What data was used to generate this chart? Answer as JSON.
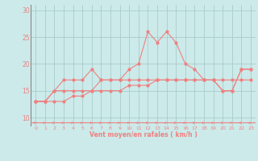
{
  "xlabel": "Vent moyen/en rafales ( km/h )",
  "background_color": "#cceaea",
  "grid_color": "#aacccc",
  "line_color": "#f08080",
  "axis_color": "#888888",
  "x_values": [
    0,
    1,
    2,
    3,
    4,
    5,
    6,
    7,
    8,
    9,
    10,
    11,
    12,
    13,
    14,
    15,
    16,
    17,
    18,
    19,
    20,
    21,
    22,
    23
  ],
  "line1_y": [
    13,
    13,
    15,
    17,
    17,
    17,
    19,
    17,
    17,
    17,
    19,
    20,
    26,
    24,
    26,
    24,
    20,
    19,
    17,
    17,
    15,
    15,
    19,
    19
  ],
  "line2_y": [
    13,
    13,
    15,
    15,
    15,
    15,
    15,
    17,
    17,
    17,
    17,
    17,
    17,
    17,
    17,
    17,
    17,
    17,
    17,
    17,
    15,
    15,
    19,
    19
  ],
  "line3_y": [
    13,
    13,
    13,
    13,
    14,
    14,
    15,
    15,
    15,
    15,
    16,
    16,
    16,
    17,
    17,
    17,
    17,
    17,
    17,
    17,
    17,
    17,
    17,
    17
  ],
  "ylim": [
    8.5,
    31
  ],
  "yticks": [
    10,
    15,
    20,
    25,
    30
  ],
  "xlim": [
    -0.5,
    23.5
  ]
}
